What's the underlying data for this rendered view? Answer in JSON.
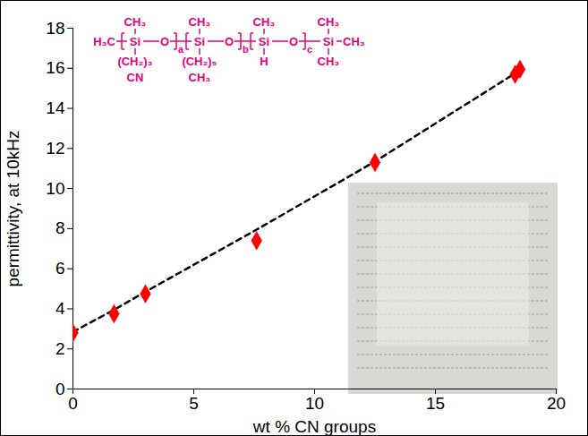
{
  "chart_data": {
    "type": "scatter",
    "x_label": "wt % CN groups",
    "y_label": "permittivity, at 10kHz",
    "xlim": [
      0,
      20
    ],
    "xticks": [
      0,
      5,
      10,
      15,
      20
    ],
    "ylim": [
      0,
      18
    ],
    "yticks": [
      0,
      2,
      4,
      6,
      8,
      10,
      12,
      14,
      16,
      18
    ],
    "grid": false,
    "series": [
      {
        "type": "line",
        "line_style": "dashed",
        "color": "#000000",
        "x": [
          0,
          1.7,
          3.0,
          7.6,
          12.5,
          18.5
        ],
        "values": [
          2.85,
          3.95,
          4.85,
          7.95,
          11.35,
          15.9
        ]
      },
      {
        "type": "scatter",
        "marker": "diamond",
        "color": "#ff0000",
        "x": [
          0,
          1.7,
          3.0,
          7.6,
          12.5,
          18.3,
          18.5
        ],
        "values": [
          2.8,
          3.75,
          4.75,
          7.4,
          11.3,
          15.7,
          15.95
        ]
      }
    ],
    "annotation": {
      "color": "#e6007e",
      "left_end": "H₃C",
      "units": [
        {
          "top": "CH₃",
          "atom": "Si",
          "link": "O",
          "bottom": [
            "(CH₂)₃",
            "CN"
          ],
          "subscript": "a"
        },
        {
          "top": "CH₃",
          "atom": "Si",
          "link": "O",
          "bottom": [
            "(CH₂)₅",
            "CH₃"
          ],
          "subscript": "b"
        },
        {
          "top": "CH₃",
          "atom": "Si",
          "link": "O",
          "bottom": [
            "H"
          ],
          "subscript": "c"
        }
      ],
      "right_end": {
        "top": "CH₃",
        "atom": "Si",
        "right": "CH₃",
        "bottom": [
          "CH₃"
        ]
      }
    }
  }
}
